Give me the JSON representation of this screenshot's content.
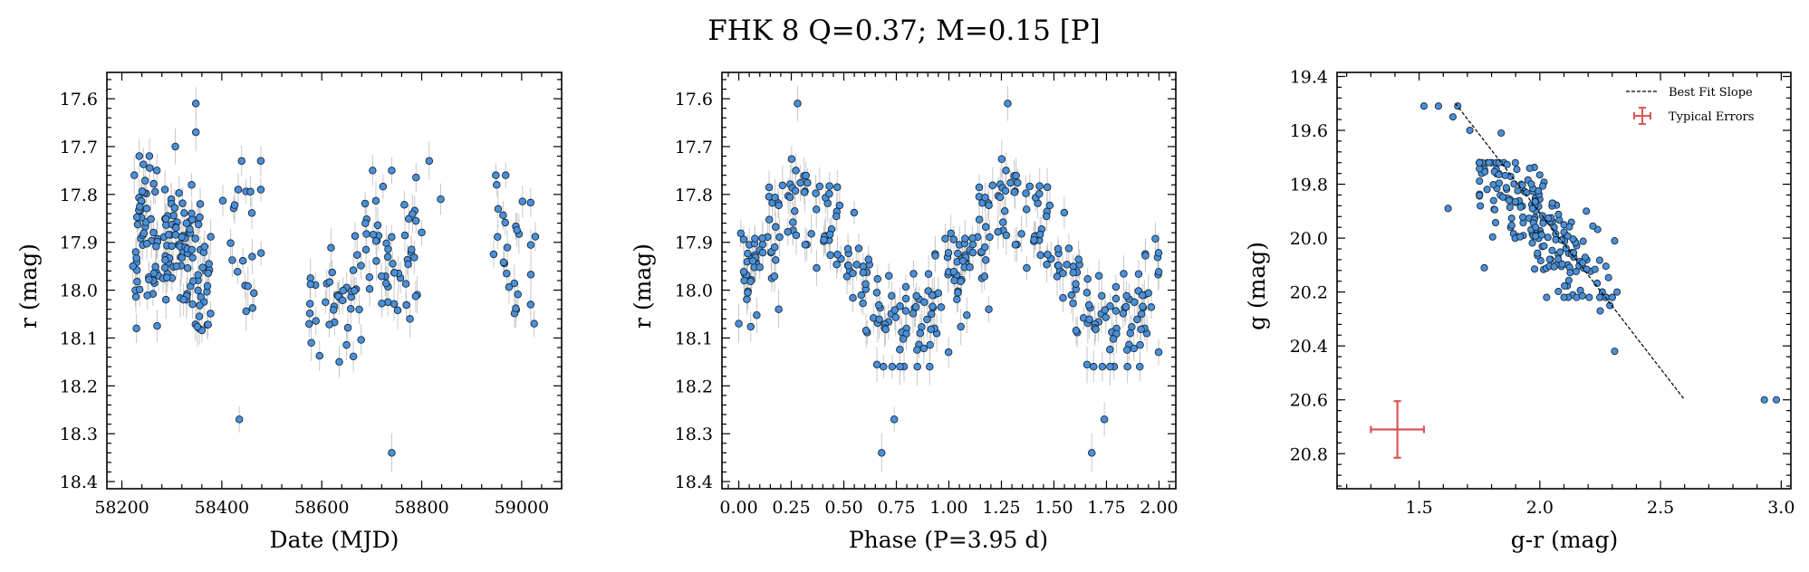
{
  "title": "FHK 8  Q=0.37; M=0.15 [P]",
  "chart_data": [
    {
      "type": "scatter",
      "xlabel": "Date (MJD)",
      "ylabel": "r (mag)",
      "xlim": [
        58170,
        59080
      ],
      "ylim": [
        18.415,
        17.545
      ],
      "y_inverted": true,
      "xticks": [
        58200,
        58400,
        58600,
        58800,
        59000
      ],
      "yticks": [
        17.6,
        17.7,
        17.8,
        17.9,
        18.0,
        18.1,
        18.2,
        18.3,
        18.4
      ],
      "tick_labels_x": [
        "58200",
        "58400",
        "58600",
        "58800",
        "59000"
      ],
      "tick_labels_y": [
        "17.6",
        "17.7",
        "17.8",
        "17.9",
        "18.0",
        "18.1",
        "18.2",
        "18.3",
        "18.4"
      ],
      "marker_color": "#4a90d9",
      "errorbar_color": "#c8c8c8",
      "typical_error": 0.03,
      "clusters": [
        {
          "x_range": [
            58225,
            58285
          ],
          "y_range": [
            17.72,
            18.08
          ],
          "count": 55
        },
        {
          "x_range": [
            58285,
            58340
          ],
          "y_range": [
            17.78,
            18.02
          ],
          "count": 60
        },
        {
          "x_range": [
            58340,
            58380
          ],
          "y_range": [
            17.82,
            18.12
          ],
          "count": 35
        },
        {
          "x_range": [
            58400,
            58480
          ],
          "y_range": [
            17.73,
            18.09
          ],
          "count": 18
        },
        {
          "x_range": [
            58570,
            58660
          ],
          "y_range": [
            17.87,
            18.15
          ],
          "count": 28
        },
        {
          "x_range": [
            58660,
            58800
          ],
          "y_range": [
            17.75,
            18.14
          ],
          "count": 60
        },
        {
          "x_range": [
            58940,
            59030
          ],
          "y_range": [
            17.76,
            18.07
          ],
          "count": 25
        }
      ],
      "points": [
        {
          "x": 58348,
          "y": 17.61
        },
        {
          "x": 58348,
          "y": 17.67
        },
        {
          "x": 58307,
          "y": 17.7
        },
        {
          "x": 58255,
          "y": 17.72
        },
        {
          "x": 58270,
          "y": 17.75
        },
        {
          "x": 58478,
          "y": 17.73
        },
        {
          "x": 58478,
          "y": 17.79
        },
        {
          "x": 58433,
          "y": 17.79
        },
        {
          "x": 58435,
          "y": 18.27
        },
        {
          "x": 58740,
          "y": 18.34
        },
        {
          "x": 58815,
          "y": 17.73
        },
        {
          "x": 58838,
          "y": 17.81
        },
        {
          "x": 58225,
          "y": 17.76
        },
        {
          "x": 58222,
          "y": 17.95
        },
        {
          "x": 58579,
          "y": 18.11
        },
        {
          "x": 58635,
          "y": 18.15
        },
        {
          "x": 58740,
          "y": 17.75
        },
        {
          "x": 58950,
          "y": 17.78
        },
        {
          "x": 58968,
          "y": 17.76
        },
        {
          "x": 59025,
          "y": 18.07
        }
      ]
    },
    {
      "type": "scatter",
      "xlabel": "Phase (P=3.95 d)",
      "ylabel": "r (mag)",
      "xlim": [
        -0.08,
        2.08
      ],
      "ylim": [
        18.415,
        17.545
      ],
      "y_inverted": true,
      "period_days": 3.95,
      "xticks": [
        0.0,
        0.25,
        0.5,
        0.75,
        1.0,
        1.25,
        1.5,
        1.75,
        2.0
      ],
      "yticks": [
        17.6,
        17.7,
        17.8,
        17.9,
        18.0,
        18.1,
        18.2,
        18.3,
        18.4
      ],
      "tick_labels_x": [
        "0.00",
        "0.25",
        "0.50",
        "0.75",
        "1.00",
        "1.25",
        "1.50",
        "1.75",
        "2.00"
      ],
      "tick_labels_y": [
        "17.6",
        "17.7",
        "17.8",
        "17.9",
        "18.0",
        "18.1",
        "18.2",
        "18.3",
        "18.4"
      ],
      "marker_color": "#4a90d9",
      "errorbar_color": "#c8c8c8",
      "typical_error": 0.03,
      "model": {
        "mean": 17.96,
        "amplitude": 0.12,
        "max_phase": 0.31,
        "scatter": 0.055,
        "points_per_cycle": 180
      },
      "points": [
        {
          "x": 0.28,
          "y": 17.61
        },
        {
          "x": 1.28,
          "y": 17.61
        },
        {
          "x": 0.68,
          "y": 18.34
        },
        {
          "x": 1.68,
          "y": 18.34
        },
        {
          "x": 0.74,
          "y": 18.27
        },
        {
          "x": 1.74,
          "y": 18.27
        },
        {
          "x": 0.0,
          "y": 18.07
        },
        {
          "x": 0.19,
          "y": 18.04
        },
        {
          "x": 1.19,
          "y": 18.04
        }
      ]
    },
    {
      "type": "scatter",
      "xlabel": "g-r (mag)",
      "ylabel": "g (mag)",
      "xlim": [
        1.16,
        3.04
      ],
      "ylim": [
        20.93,
        19.385
      ],
      "y_inverted": true,
      "xticks": [
        1.5,
        2.0,
        2.5,
        3.0
      ],
      "yticks": [
        19.4,
        19.6,
        19.8,
        20.0,
        20.2,
        20.4,
        20.6,
        20.8
      ],
      "tick_labels_x": [
        "1.5",
        "2.0",
        "2.5",
        "3.0"
      ],
      "tick_labels_y": [
        "19.4",
        "19.6",
        "19.8",
        "20.0",
        "20.2",
        "20.4",
        "20.6",
        "20.8"
      ],
      "marker_color": "#4a90d9",
      "cluster": {
        "center": [
          2.0,
          19.95
        ],
        "count": 210,
        "slope": 1.15
      },
      "best_fit": {
        "x": [
          1.65,
          2.6
        ],
        "y": [
          19.5,
          20.6
        ]
      },
      "typical_errors": {
        "x": 1.41,
        "y": 20.71,
        "xerr": 0.11,
        "yerr": 0.105,
        "color": "#d95555"
      },
      "points": [
        {
          "x": 1.52,
          "y": 19.51
        },
        {
          "x": 1.58,
          "y": 19.51
        },
        {
          "x": 1.66,
          "y": 19.51
        },
        {
          "x": 1.64,
          "y": 19.55
        },
        {
          "x": 1.71,
          "y": 19.6
        },
        {
          "x": 1.84,
          "y": 19.61
        },
        {
          "x": 1.62,
          "y": 19.89
        },
        {
          "x": 1.77,
          "y": 20.11
        },
        {
          "x": 2.31,
          "y": 20.42
        },
        {
          "x": 2.32,
          "y": 20.2
        },
        {
          "x": 2.29,
          "y": 20.25
        },
        {
          "x": 2.25,
          "y": 20.27
        },
        {
          "x": 2.31,
          "y": 20.01
        },
        {
          "x": 2.93,
          "y": 20.6
        },
        {
          "x": 2.98,
          "y": 20.6
        }
      ],
      "legend": [
        {
          "label": "Best Fit Slope",
          "style": "dashed",
          "color": "#000000"
        },
        {
          "label": "Typical Errors",
          "style": "errorbar",
          "color": "#d95555"
        }
      ],
      "legend_position": "top-right"
    }
  ]
}
